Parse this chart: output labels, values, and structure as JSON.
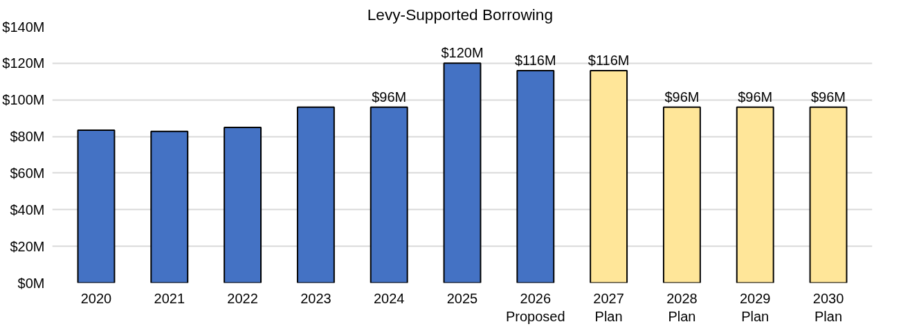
{
  "chart_data": {
    "type": "bar",
    "title": "Levy-Supported  Borrowing",
    "categories": [
      "2020",
      "2021",
      "2022",
      "2023",
      "2024",
      "2025",
      "2026\nProposed",
      "2027\nPlan",
      "2028\nPlan",
      "2029\nPlan",
      "2030\nPlan"
    ],
    "values": [
      83.4,
      82.8,
      84.9,
      96,
      96,
      120,
      116,
      116,
      96,
      96,
      96
    ],
    "colors": [
      "#4472c4",
      "#4472c4",
      "#4472c4",
      "#4472c4",
      "#4472c4",
      "#4472c4",
      "#4472c4",
      "#ffe699",
      "#ffe699",
      "#ffe699",
      "#ffe699"
    ],
    "value_labels": [
      null,
      null,
      null,
      null,
      "$96M",
      "$120M",
      "$116M",
      "$116M",
      "$96M",
      "$96M",
      "$96M"
    ],
    "ylim": [
      0,
      140
    ],
    "yticks": [
      {
        "value": 0,
        "label": "$0M"
      },
      {
        "value": 20,
        "label": "$20M"
      },
      {
        "value": 40,
        "label": "$40M"
      },
      {
        "value": 60,
        "label": "$60M"
      },
      {
        "value": 80,
        "label": "$80M"
      },
      {
        "value": 100,
        "label": "$100M"
      },
      {
        "value": 120,
        "label": "$120M"
      },
      {
        "value": 140,
        "label": "$140M"
      }
    ],
    "grid": "y"
  }
}
